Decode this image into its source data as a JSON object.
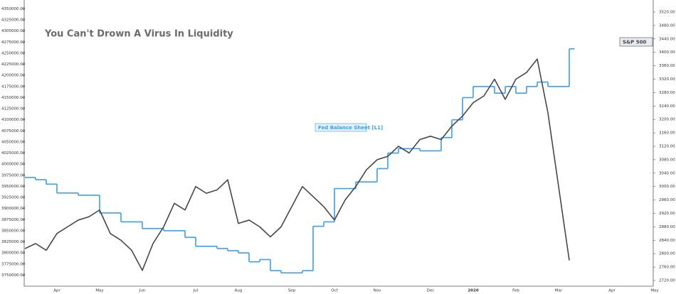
{
  "chart_data": {
    "type": "line",
    "title": "You Can't Drown A Virus In Liquidity",
    "categories": [
      null,
      null,
      null,
      "Apr",
      null,
      null,
      null,
      "May",
      null,
      null,
      null,
      "Jun",
      null,
      null,
      null,
      null,
      "Jul",
      null,
      null,
      null,
      "Aug",
      null,
      null,
      null,
      null,
      "Sep",
      null,
      null,
      null,
      "Oct",
      null,
      null,
      null,
      "Nov",
      null,
      null,
      null,
      null,
      "Dec",
      null,
      null,
      null,
      "2020",
      null,
      null,
      null,
      "Feb",
      null,
      null,
      null,
      "Mar",
      null,
      null,
      null,
      null,
      "Apr",
      null,
      null,
      null,
      "May"
    ],
    "series": [
      {
        "name": "Fed Balance Sheet [L1]",
        "color": "#3a9fe6",
        "step": true,
        "values": [
          3970000,
          3965000,
          3955000,
          3935000,
          3935000,
          3930000,
          3930000,
          3890000,
          3890000,
          3870000,
          3870000,
          3855000,
          3855000,
          3850000,
          3850000,
          3835000,
          3815000,
          3815000,
          3810000,
          3805000,
          3800000,
          3780000,
          3785000,
          3760000,
          3755000,
          3755000,
          3760000,
          3860000,
          3870000,
          3945000,
          3945000,
          3960000,
          3960000,
          3990000,
          4025000,
          4035000,
          4035000,
          4030000,
          4030000,
          4060000,
          4100000,
          4150000,
          4175000,
          4175000,
          4160000,
          4175000,
          4160000,
          4175000,
          4185000,
          4175000,
          4175000,
          4260000,
          null,
          null,
          null,
          null,
          null,
          null,
          null,
          null
        ]
      },
      {
        "name": "S&P 500",
        "color": "#45464f",
        "axis": "y2",
        "values": [
          2815,
          2830,
          2810,
          2860,
          2880,
          2900,
          2910,
          2930,
          2860,
          2840,
          2810,
          2750,
          2830,
          2880,
          2950,
          2930,
          3000,
          2980,
          2990,
          3020,
          2890,
          2900,
          2880,
          2850,
          2880,
          2940,
          3000,
          2970,
          2940,
          2900,
          2960,
          3000,
          3050,
          3080,
          3090,
          3120,
          3100,
          3140,
          3150,
          3140,
          3180,
          3210,
          3250,
          3270,
          3320,
          3260,
          3320,
          3340,
          3380,
          3220,
          3000,
          2780,
          null,
          null,
          null,
          null,
          null,
          null,
          null,
          null
        ]
      }
    ],
    "ylim": [
      3725000,
      4370000
    ],
    "yticks": [
      {
        "value": 3750000,
        "label": "3750000.00"
      },
      {
        "value": 3775000,
        "label": "3775000.00"
      },
      {
        "value": 3800000,
        "label": "3800000.00"
      },
      {
        "value": 3825000,
        "label": "3825000.00"
      },
      {
        "value": 3850000,
        "label": "3850000.00"
      },
      {
        "value": 3875000,
        "label": "3875000.00"
      },
      {
        "value": 3900000,
        "label": "3900000.00"
      },
      {
        "value": 3925000,
        "label": "3925000.00"
      },
      {
        "value": 3950000,
        "label": "3950000.00"
      },
      {
        "value": 3975000,
        "label": "3975000.00"
      },
      {
        "value": 4000000,
        "label": "4000000.00"
      },
      {
        "value": 4025000,
        "label": "4025000.00"
      },
      {
        "value": 4050000,
        "label": "4050000.00"
      },
      {
        "value": 4075000,
        "label": "4075000.00"
      },
      {
        "value": 4100000,
        "label": "4100000.00"
      },
      {
        "value": 4125000,
        "label": "4125000.00"
      },
      {
        "value": 4150000,
        "label": "4150000.00"
      },
      {
        "value": 4175000,
        "label": "4175000.00"
      },
      {
        "value": 4200000,
        "label": "4200000.00"
      },
      {
        "value": 4225000,
        "label": "4225000.00"
      },
      {
        "value": 4250000,
        "label": "4250000.00"
      },
      {
        "value": 4275000,
        "label": "4275000.00"
      },
      {
        "value": 4300000,
        "label": "4300000.00"
      },
      {
        "value": 4325000,
        "label": "4325000.00"
      },
      {
        "value": 4350000,
        "label": "4350000.00"
      }
    ],
    "y2lim": [
      2703,
      3556
    ],
    "y2ticks": [
      {
        "value": 2720,
        "label": "2720.00"
      },
      {
        "value": 2760,
        "label": "2760.00"
      },
      {
        "value": 2800,
        "label": "2800.00"
      },
      {
        "value": 2840,
        "label": "2840.00"
      },
      {
        "value": 2880,
        "label": "2880.00"
      },
      {
        "value": 2920,
        "label": "2920.00"
      },
      {
        "value": 2960,
        "label": "2960.00"
      },
      {
        "value": 3000,
        "label": "3000.00"
      },
      {
        "value": 3040,
        "label": "3040.00"
      },
      {
        "value": 3080,
        "label": "3080.00"
      },
      {
        "value": 3120,
        "label": "3120.00"
      },
      {
        "value": 3160,
        "label": "3160.00"
      },
      {
        "value": 3200,
        "label": "3200.00"
      },
      {
        "value": 3240,
        "label": "3240.00"
      },
      {
        "value": 3280,
        "label": "3280.00"
      },
      {
        "value": 3320,
        "label": "3320.00"
      },
      {
        "value": 3360,
        "label": "3360.00"
      },
      {
        "value": 3400,
        "label": "3400.00"
      },
      {
        "value": 3440,
        "label": "3440.00"
      },
      {
        "value": 3480,
        "label": "3480.00"
      },
      {
        "value": 3520,
        "label": "3520.00"
      }
    ],
    "grid": false
  }
}
